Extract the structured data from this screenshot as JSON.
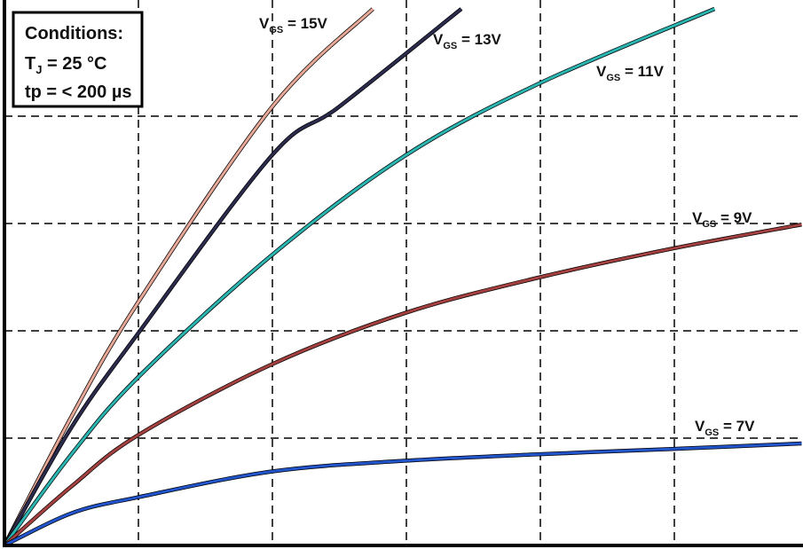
{
  "chart_data": {
    "type": "line",
    "conditions": {
      "title": "Conditions:",
      "temp_main": "T",
      "temp_sub": "J",
      "temp_rest": " = 25 °C",
      "pulse": "tp = < 200 µs"
    },
    "xlim": [
      0,
      6
    ],
    "ylim": [
      0,
      5
    ],
    "xticks": [
      1,
      2,
      3,
      4,
      5
    ],
    "yticks": [
      1,
      2,
      3,
      4
    ],
    "grid": true,
    "series": [
      {
        "name_main": "V",
        "name_sub": "GS",
        "name_rest": " = 15V",
        "color": "#e8a898",
        "x": [
          0,
          0.5,
          1,
          2,
          2.75
        ],
        "values": [
          0,
          1.2,
          2.27,
          4.09,
          5.0
        ]
      },
      {
        "name_main": "V",
        "name_sub": "GS",
        "name_rest": " = 13V",
        "color": "#2b2b4d",
        "x": [
          0,
          0.5,
          1,
          2,
          2.5,
          3.41
        ],
        "values": [
          0,
          1.1,
          1.98,
          3.64,
          4.09,
          5.0
        ]
      },
      {
        "name_main": "V",
        "name_sub": "GS",
        "name_rest": " = 11V",
        "color": "#2ab5b0",
        "x": [
          0,
          0.5,
          1,
          2,
          3,
          4,
          5.3
        ],
        "values": [
          0,
          0.85,
          1.57,
          2.71,
          3.64,
          4.31,
          5.0
        ]
      },
      {
        "name_main": "V",
        "name_sub": "GS",
        "name_rest": " = 9V",
        "color": "#a4403f",
        "x": [
          0,
          0.5,
          1,
          2,
          3,
          4,
          5,
          5.95
        ],
        "values": [
          0,
          0.55,
          1.03,
          1.69,
          2.17,
          2.5,
          2.77,
          2.99
        ]
      },
      {
        "name_main": "V",
        "name_sub": "GS",
        "name_rest": " = 7V",
        "color": "#2255cc",
        "x": [
          0,
          0.5,
          1,
          2,
          3,
          4,
          5,
          5.95
        ],
        "values": [
          0,
          0.3,
          0.45,
          0.69,
          0.79,
          0.85,
          0.9,
          0.95
        ]
      }
    ]
  }
}
